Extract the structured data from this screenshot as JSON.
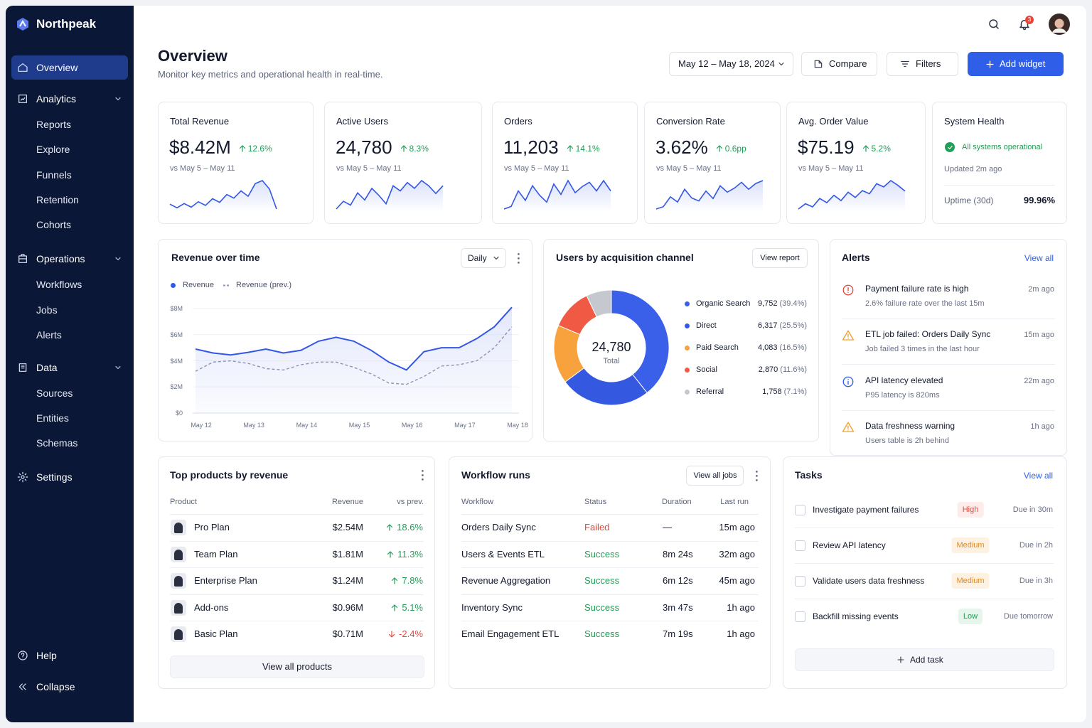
{
  "sidebar": {
    "brand": "Northpeak",
    "nav": [
      {
        "label": "Overview"
      },
      {
        "label": "Analytics",
        "children": [
          "Reports",
          "Explore",
          "Funnels",
          "Retention",
          "Cohorts"
        ]
      },
      {
        "label": "Operations",
        "children": [
          "Workflows",
          "Jobs",
          "Alerts"
        ]
      },
      {
        "label": "Data",
        "children": [
          "Sources",
          "Entities",
          "Schemas"
        ]
      },
      {
        "label": "Settings"
      }
    ],
    "footer": [
      "Help",
      "Collapse"
    ]
  },
  "header": {
    "title": "Overview",
    "subtitle": "Monitor key metrics and operational health in real-time.",
    "date_range": "May 12 – May 18, 2024",
    "buttons": [
      "Compare",
      "Filters",
      "Add widget"
    ],
    "notifications": "3"
  },
  "kpis": [
    {
      "label": "Total Revenue",
      "value": "$8.42M",
      "delta": "12.6%",
      "compare": "vs May 5 – May 11",
      "spark": [
        3,
        2.4,
        3.1,
        2.5,
        3.4,
        2.8,
        3.9,
        3.3,
        4.6,
        4,
        5.2,
        4.3,
        6.4,
        6.9,
        5.5,
        2.2
      ]
    },
    {
      "label": "Active Users",
      "value": "24,780",
      "delta": "8.3%",
      "compare": "vs May 5 – May 11",
      "spark": [
        2,
        3.2,
        2.6,
        4.5,
        3.4,
        5.2,
        4.1,
        2.8,
        5.6,
        4.8,
        6.1,
        5.2,
        6.4,
        5.6,
        4.4,
        5.6
      ]
    },
    {
      "label": "Orders",
      "value": "11,203",
      "delta": "14.1%",
      "compare": "vs May 5 – May 11",
      "spark": [
        2.5,
        2.8,
        4.6,
        3.5,
        5.2,
        4.1,
        3.3,
        5.4,
        4.2,
        5.8,
        4.4,
        5.1,
        5.6,
        4.6,
        5.8,
        4.6
      ]
    },
    {
      "label": "Conversion Rate",
      "value": "3.62%",
      "delta": "0.6pp",
      "compare": "vs May 5 – May 11",
      "spark": [
        2,
        2.4,
        4.1,
        3.2,
        5.4,
        3.9,
        3.4,
        5.1,
        3.8,
        6,
        4.9,
        5.6,
        6.6,
        5.4,
        6.4,
        6.9
      ]
    },
    {
      "label": "Avg. Order Value",
      "value": "$75.19",
      "delta": "5.2%",
      "compare": "vs May 5 – May 11",
      "spark": [
        2,
        3,
        2.4,
        4,
        3.2,
        4.6,
        3.6,
        5.2,
        4.2,
        5.5,
        4.9,
        6.8,
        6.2,
        7.4,
        6.5,
        5.4
      ]
    }
  ],
  "system_health": {
    "title": "System Health",
    "status": "All systems operational",
    "updated": "Updated 2m ago",
    "uptime_label": "Uptime (30d)",
    "uptime": "99.96%"
  },
  "revenue_chart": {
    "type": "line",
    "title": "Revenue over time",
    "control": "Daily",
    "categories": [
      "May 12",
      null,
      null,
      "May 13",
      null,
      null,
      "May 14",
      null,
      null,
      "May 15",
      null,
      null,
      "May 16",
      null,
      null,
      "May 17",
      null,
      null,
      "May 18"
    ],
    "series": [
      {
        "name": "Revenue",
        "color": "#3357e6",
        "values": [
          4900000,
          4600000,
          4450000,
          4650000,
          4900000,
          4600000,
          4800000,
          5500000,
          5800000,
          5500000,
          4800000,
          3900000,
          3300000,
          4700000,
          5000000,
          5000000,
          5700000,
          6600000,
          8100000
        ]
      },
      {
        "name": "Revenue (prev.)",
        "color": "#8b93b5",
        "dashed": true,
        "values": [
          3200000,
          3900000,
          4000000,
          3800000,
          3400000,
          3300000,
          3700000,
          3900000,
          3900000,
          3500000,
          3000000,
          2300000,
          2200000,
          2800000,
          3600000,
          3700000,
          4000000,
          5000000,
          6600000
        ]
      }
    ],
    "ylim": [
      0,
      8000000
    ],
    "yticks": [
      {
        "value": 0,
        "label": "$0"
      },
      {
        "value": 2000000,
        "label": "$2M"
      },
      {
        "value": 4000000,
        "label": "$4M"
      },
      {
        "value": 6000000,
        "label": "$6M"
      },
      {
        "value": 8000000,
        "label": "$8M"
      }
    ],
    "grid": true
  },
  "channels": {
    "type": "donut",
    "title": "Users by acquisition channel",
    "button": "View report",
    "total": 24780,
    "total_label": "24,780",
    "total_caption": "Total",
    "items": [
      {
        "name": "Organic Search",
        "color": "#3a5fe8",
        "value": 9752,
        "value_label": "9,752",
        "share": 39.4,
        "share_label": "(39.4%)"
      },
      {
        "name": "Direct",
        "color": "#3458e0",
        "value": 6317,
        "value_label": "6,317",
        "share": 25.5,
        "share_label": "(25.5%)"
      },
      {
        "name": "Paid Search",
        "color": "#f7a23c",
        "value": 4083,
        "value_label": "4,083",
        "share": 16.5,
        "share_label": "(16.5%)"
      },
      {
        "name": "Social",
        "color": "#f05a45",
        "value": 2870,
        "value_label": "2,870",
        "share": 11.6,
        "share_label": "(11.6%)"
      },
      {
        "name": "Referral",
        "color": "#c6c8cf",
        "value": 1758,
        "value_label": "1,758",
        "share": 7.1,
        "share_label": "(7.1%)"
      }
    ]
  },
  "alerts": {
    "title": "Alerts",
    "link": "View all",
    "items": [
      {
        "title": "Payment failure rate is high",
        "detail": "2.6% failure rate over the last 15m",
        "time": "2m ago"
      },
      {
        "title": "ETL job failed: Orders Daily Sync",
        "detail": "Job failed 3 times in the last hour",
        "time": "15m ago"
      },
      {
        "title": "API latency elevated",
        "detail": "P95 latency is 820ms",
        "time": "22m ago"
      },
      {
        "title": "Data freshness warning",
        "detail": "Users table is 2h behind",
        "time": "1h ago"
      }
    ]
  },
  "products": {
    "title": "Top products by revenue",
    "headers": [
      "Product",
      "Revenue",
      "vs prev."
    ],
    "rows": [
      {
        "name": "Pro Plan",
        "revenue": "$2.54M",
        "change": "18.6%",
        "color": "#1f9d55"
      },
      {
        "name": "Team Plan",
        "revenue": "$1.81M",
        "change": "11.3%",
        "color": "#1f9d55"
      },
      {
        "name": "Enterprise Plan",
        "revenue": "$1.24M",
        "change": "7.8%",
        "color": "#1f9d55"
      },
      {
        "name": "Add-ons",
        "revenue": "$0.96M",
        "change": "5.1%",
        "color": "#1f9d55"
      },
      {
        "name": "Basic Plan",
        "revenue": "$0.71M",
        "change": "-2.4%",
        "color": "#e5483b"
      }
    ],
    "button": "View all products"
  },
  "workflows": {
    "title": "Workflow runs",
    "button": "View all jobs",
    "headers": [
      "Workflow",
      "Status",
      "Duration",
      "Last run"
    ],
    "rows": [
      {
        "name": "Orders Daily Sync",
        "status": "Failed",
        "color": "#e5483b",
        "duration": "—",
        "last_run": "15m ago"
      },
      {
        "name": "Users & Events ETL",
        "status": "Success",
        "color": "#1f9d55",
        "duration": "8m 24s",
        "last_run": "32m ago"
      },
      {
        "name": "Revenue Aggregation",
        "status": "Success",
        "color": "#1f9d55",
        "duration": "6m 12s",
        "last_run": "45m ago"
      },
      {
        "name": "Inventory Sync",
        "status": "Success",
        "color": "#1f9d55",
        "duration": "3m 47s",
        "last_run": "1h ago"
      },
      {
        "name": "Email Engagement ETL",
        "status": "Success",
        "color": "#1f9d55",
        "duration": "7m 19s",
        "last_run": "1h ago"
      }
    ]
  },
  "tasks": {
    "title": "Tasks",
    "link": "View all",
    "items": [
      {
        "task": "Investigate payment failures",
        "priority": "High",
        "color": "#e5483b",
        "bg": "#fdecea",
        "due": "Due in 30m"
      },
      {
        "task": "Review API latency",
        "priority": "Medium",
        "color": "#e58a1f",
        "bg": "#fdf1e2",
        "due": "Due in 2h"
      },
      {
        "task": "Validate users data freshness",
        "priority": "Medium",
        "color": "#e58a1f",
        "bg": "#fdf1e2",
        "due": "Due in 3h"
      },
      {
        "task": "Backfill missing events",
        "priority": "Low",
        "color": "#1f9d55",
        "bg": "#e7f6ec",
        "due": "Due tomorrow"
      }
    ],
    "add": "Add task"
  }
}
